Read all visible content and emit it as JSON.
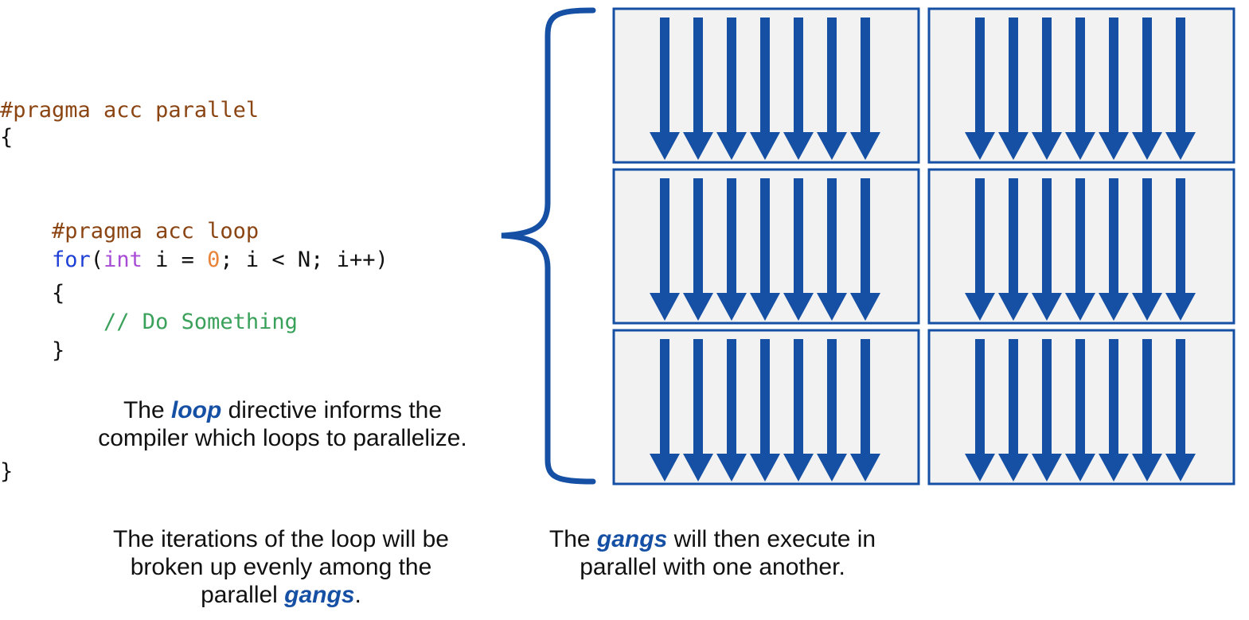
{
  "code": {
    "pragma_parallel": "#pragma acc parallel",
    "open_brace_outer": "{",
    "pragma_loop": "    #pragma acc loop",
    "for_kw": "    for",
    "for_paren": "(",
    "int_kw": "int",
    "for_mid": " i = ",
    "zero": "0",
    "for_end": "; i < N; i++)",
    "open_brace_inner": "    {",
    "comment": "        // Do Something",
    "close_brace_inner": "    }",
    "close_brace_outer": "}"
  },
  "captions": {
    "loop": {
      "pre": "The ",
      "em": "loop",
      "post": " directive informs the compiler which loops to parallelize."
    },
    "iterations": {
      "pre": "The iterations of the loop will be broken up evenly among the parallel ",
      "em": "gangs",
      "post": "."
    },
    "gangs": {
      "pre": "The ",
      "em": "gangs",
      "post": " will then execute in parallel with one another."
    }
  },
  "diagram": {
    "rows": 3,
    "cols": 2,
    "arrows_per_gang": 7,
    "colors": {
      "arrow": "#1550a4",
      "box_fill": "#f2f2f2",
      "box_stroke": "#1550a4",
      "brace": "#1550a4"
    }
  }
}
